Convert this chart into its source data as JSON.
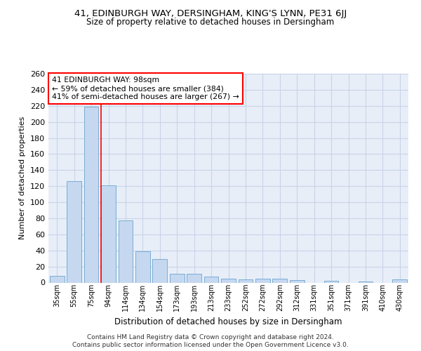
{
  "title1": "41, EDINBURGH WAY, DERSINGHAM, KING'S LYNN, PE31 6JJ",
  "title2": "Size of property relative to detached houses in Dersingham",
  "xlabel": "Distribution of detached houses by size in Dersingham",
  "ylabel": "Number of detached properties",
  "categories": [
    "35sqm",
    "55sqm",
    "75sqm",
    "94sqm",
    "114sqm",
    "134sqm",
    "154sqm",
    "173sqm",
    "193sqm",
    "213sqm",
    "233sqm",
    "252sqm",
    "272sqm",
    "292sqm",
    "312sqm",
    "331sqm",
    "351sqm",
    "371sqm",
    "391sqm",
    "410sqm",
    "430sqm"
  ],
  "values": [
    8,
    126,
    219,
    121,
    77,
    39,
    29,
    11,
    11,
    7,
    5,
    4,
    5,
    5,
    3,
    0,
    2,
    0,
    1,
    0,
    4
  ],
  "bar_color": "#c5d8f0",
  "bar_edge_color": "#7aadd4",
  "grid_color": "#c8d4e8",
  "background_color": "#e8eef8",
  "vline_x": 2.57,
  "vline_color": "red",
  "annotation_line1": "41 EDINBURGH WAY: 98sqm",
  "annotation_line2": "← 59% of detached houses are smaller (384)",
  "annotation_line3": "41% of semi-detached houses are larger (267) →",
  "annotation_box_color": "white",
  "annotation_box_edge": "red",
  "footer1": "Contains HM Land Registry data © Crown copyright and database right 2024.",
  "footer2": "Contains public sector information licensed under the Open Government Licence v3.0.",
  "ylim": [
    0,
    260
  ],
  "yticks": [
    0,
    20,
    40,
    60,
    80,
    100,
    120,
    140,
    160,
    180,
    200,
    220,
    240,
    260
  ]
}
